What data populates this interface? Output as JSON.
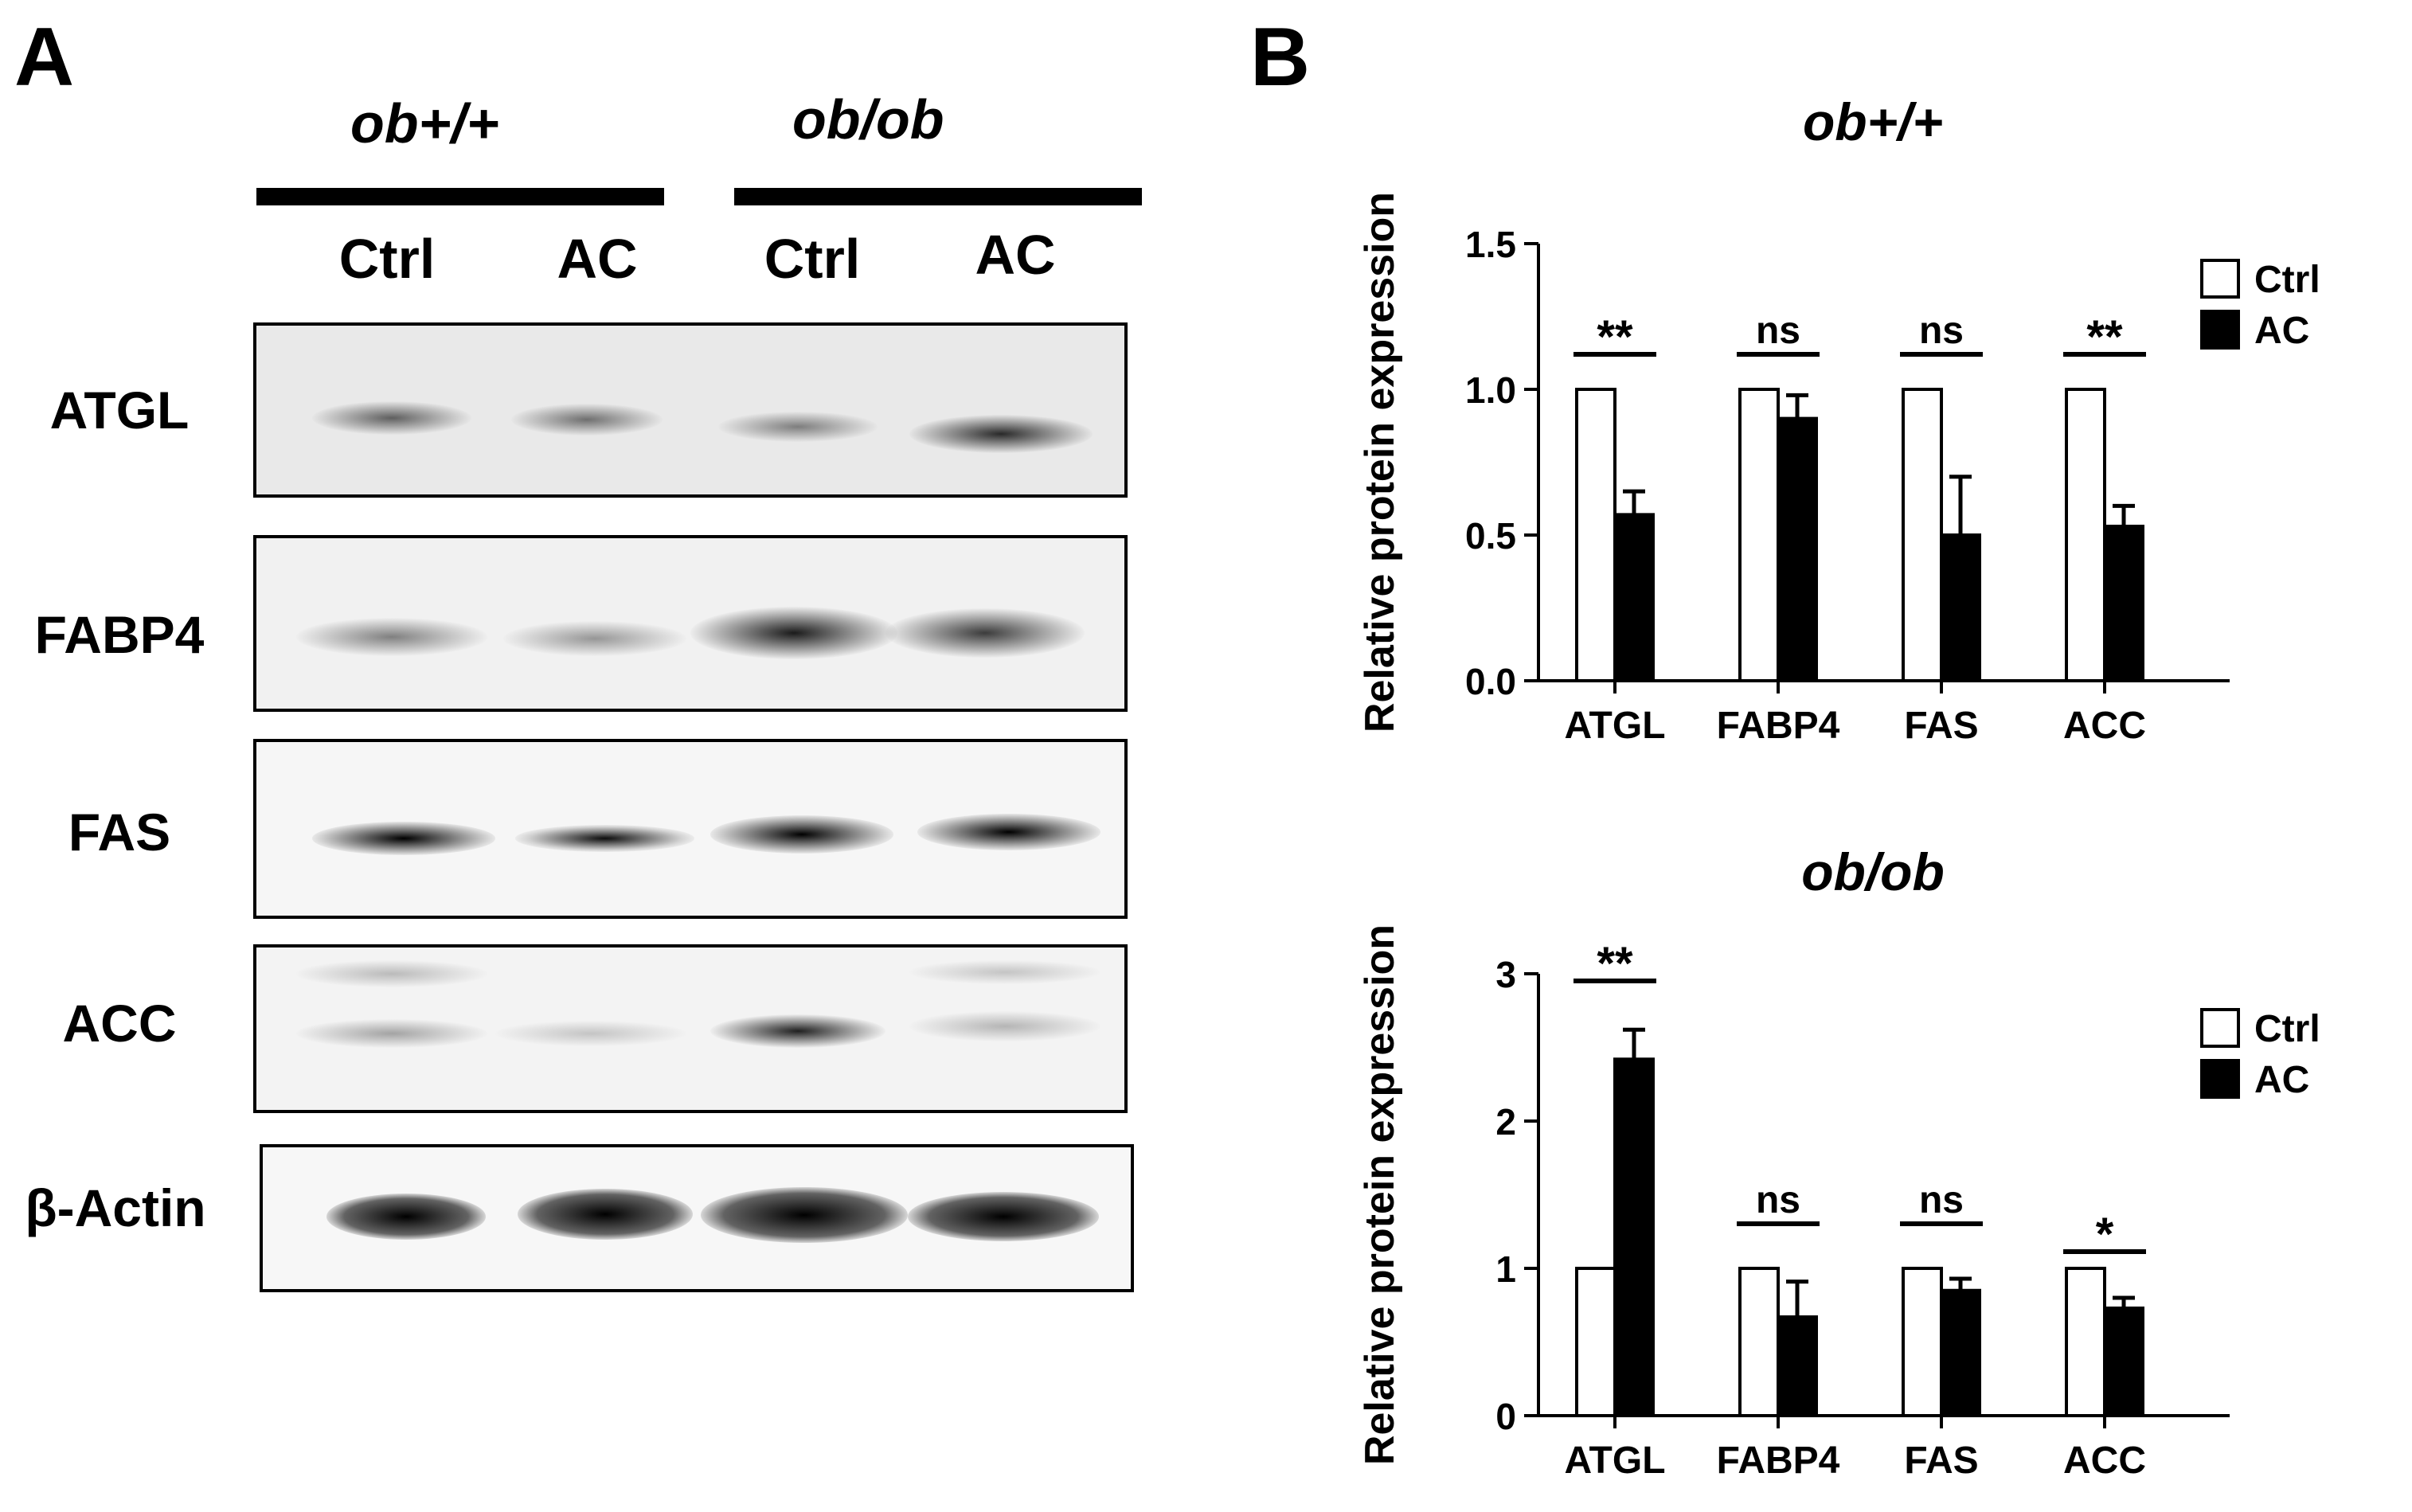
{
  "panel_a": {
    "letter": "A",
    "groups": [
      "ob+/+",
      "ob/ob"
    ],
    "lanes": [
      "Ctrl",
      "AC",
      "Ctrl",
      "AC"
    ],
    "proteins": [
      "ATGL",
      "FABP4",
      "FAS",
      "ACC",
      "β-Actin"
    ]
  },
  "panel_b": {
    "letter": "B"
  },
  "chart_data": [
    {
      "type": "bar",
      "title": "ob+/+",
      "xlabel": "",
      "ylabel": "Relative protein expression",
      "categories": [
        "ATGL",
        "FABP4",
        "FAS",
        "ACC"
      ],
      "series": [
        {
          "name": "Ctrl",
          "values": [
            1.0,
            1.0,
            1.0,
            1.0
          ],
          "color": "#ffffff"
        },
        {
          "name": "AC",
          "values": [
            0.57,
            0.9,
            0.5,
            0.53
          ],
          "errors": [
            0.08,
            0.08,
            0.2,
            0.07
          ],
          "color": "#000000"
        }
      ],
      "ylim": [
        0,
        1.5
      ],
      "yticks": [
        "0.0",
        "0.5",
        "1.0",
        "1.5"
      ],
      "significance": [
        "**",
        "ns",
        "ns",
        "**"
      ],
      "legend": "right",
      "grid": false
    },
    {
      "type": "bar",
      "title": "ob/ob",
      "xlabel": "",
      "ylabel": "Relative protein expression",
      "categories": [
        "ATGL",
        "FABP4",
        "FAS",
        "ACC"
      ],
      "series": [
        {
          "name": "Ctrl",
          "values": [
            1.0,
            1.0,
            1.0,
            1.0
          ],
          "color": "#ffffff"
        },
        {
          "name": "AC",
          "values": [
            2.42,
            0.67,
            0.85,
            0.73
          ],
          "errors": [
            0.2,
            0.24,
            0.08,
            0.07
          ],
          "color": "#000000"
        }
      ],
      "ylim": [
        0,
        3
      ],
      "yticks": [
        "0",
        "1",
        "2",
        "3"
      ],
      "significance": [
        "**",
        "ns",
        "ns",
        "*"
      ],
      "legend": "right",
      "grid": false
    }
  ]
}
